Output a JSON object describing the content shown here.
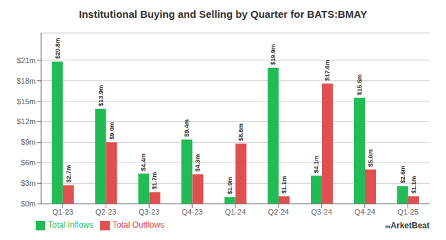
{
  "chart_data": {
    "type": "bar",
    "title": "Institutional Buying and Selling by Quarter for BATS:BMAY",
    "categories": [
      "Q1-23",
      "Q2-23",
      "Q3-23",
      "Q4-23",
      "Q1-24",
      "Q2-24",
      "Q3-24",
      "Q4-24",
      "Q1-25"
    ],
    "series": [
      {
        "name": "Total Inflows",
        "color": "#22bb55",
        "values": [
          20.8,
          13.9,
          4.4,
          9.4,
          1.0,
          19.9,
          4.1,
          15.5,
          2.6
        ],
        "value_labels": [
          "$20.8m",
          "$13.9m",
          "$4.4m",
          "$9.4m",
          "$1.0m",
          "$19.9m",
          "$4.1m",
          "$15.5m",
          "$2.6m"
        ]
      },
      {
        "name": "Total Outflows",
        "color": "#e05050",
        "values": [
          2.7,
          9.0,
          1.7,
          4.3,
          8.8,
          1.1,
          17.6,
          5.0,
          1.1
        ],
        "value_labels": [
          "$2.7m",
          "$9.0m",
          "$1.7m",
          "$4.3m",
          "$8.8m",
          "$1.1m",
          "$17.6m",
          "$5.0m",
          "$1.1m"
        ]
      }
    ],
    "ylim": [
      0,
      25
    ],
    "yticks": [
      {
        "value": 0,
        "label": "$0m"
      },
      {
        "value": 3,
        "label": "$3m"
      },
      {
        "value": 6,
        "label": "$6m"
      },
      {
        "value": 9,
        "label": "$9m"
      },
      {
        "value": 12,
        "label": "$12m"
      },
      {
        "value": 15,
        "label": "$15m"
      },
      {
        "value": 18,
        "label": "$18m"
      },
      {
        "value": 21,
        "label": "$21m"
      }
    ],
    "grid": true,
    "data_labels": true,
    "legend": "lower left",
    "annotations": [
      "ₘArketBeat"
    ]
  }
}
